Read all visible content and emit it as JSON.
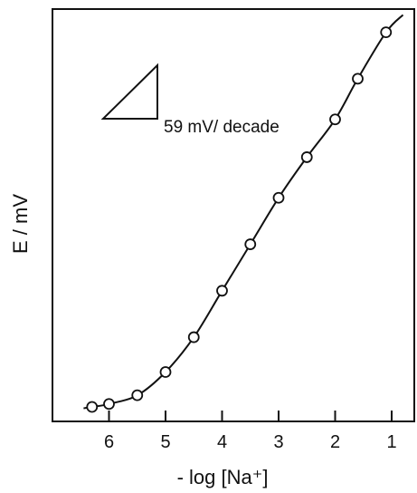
{
  "chart_data": {
    "type": "line",
    "xlabel": "- log [Na⁺]",
    "ylabel": "E / mV",
    "x_ticks": [
      6,
      5,
      4,
      3,
      2,
      1
    ],
    "x_tick_labels": [
      "6",
      "5",
      "4",
      "3",
      "2",
      "1"
    ],
    "xlim": [
      7,
      0.6
    ],
    "ylim": [
      0,
      14.2
    ],
    "x_reversed": true,
    "y_ticks_shown": false,
    "grid": false,
    "series": [
      {
        "markers": "open-circle",
        "fit_curve": true,
        "x": [
          6.3,
          6.0,
          5.5,
          5.0,
          4.5,
          4.0,
          3.5,
          3.0,
          2.5,
          2.0,
          1.6,
          1.1
        ],
        "y": [
          0.5,
          0.6,
          0.9,
          1.7,
          2.9,
          4.5,
          6.1,
          7.7,
          9.1,
          10.4,
          11.8,
          13.4
        ]
      }
    ],
    "annotation": {
      "text": "59 mV/ decade",
      "shape": "slope-triangle"
    }
  }
}
